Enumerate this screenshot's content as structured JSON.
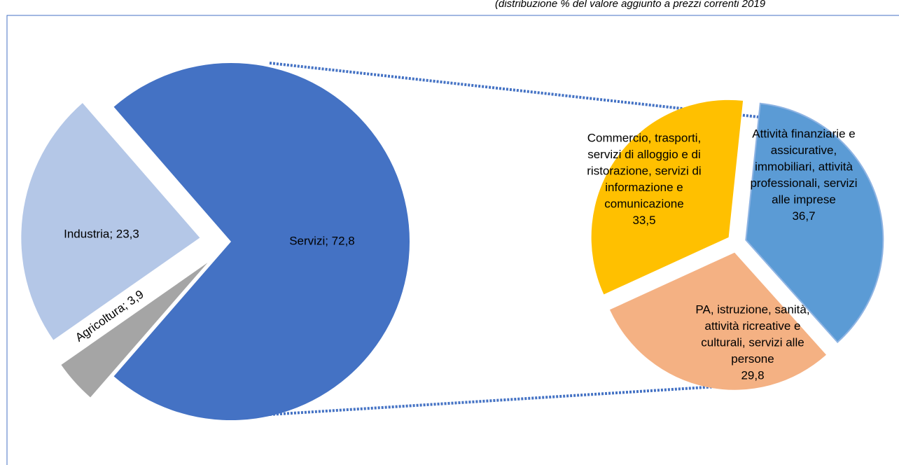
{
  "chart_data": {
    "type": "pie-of-pie",
    "subtitle": "(distribuzione % del valore aggiunto a prezzi correnti 2019",
    "main": {
      "values": [
        72.8,
        3.9,
        23.3
      ],
      "value_labels": [
        "Servizi; 72,8",
        "Agricoltura; 3,9",
        "Industria; 23,3"
      ],
      "colors": [
        "#4472c4",
        "#a5a5a5",
        "#b4c7e7"
      ]
    },
    "secondary": {
      "categories": [
        [
          "Attività finanziarie e",
          "assicurative,",
          "immobiliari, attività",
          "professionali, servizi",
          "alle imprese"
        ],
        [
          "PA, istruzione, sanità,",
          "attività ricreative e",
          "culturali, servizi alle",
          "persone"
        ],
        [
          "Commercio, trasporti,",
          "servizi di alloggio e di",
          "ristorazione, servizi di",
          "informazione e",
          "comunicazione"
        ]
      ],
      "values": [
        36.7,
        29.8,
        33.5
      ],
      "value_labels": [
        "36,7",
        "29,8",
        "33,5"
      ],
      "colors": [
        "#5b9bd5",
        "#f4b183",
        "#ffc000"
      ]
    }
  }
}
